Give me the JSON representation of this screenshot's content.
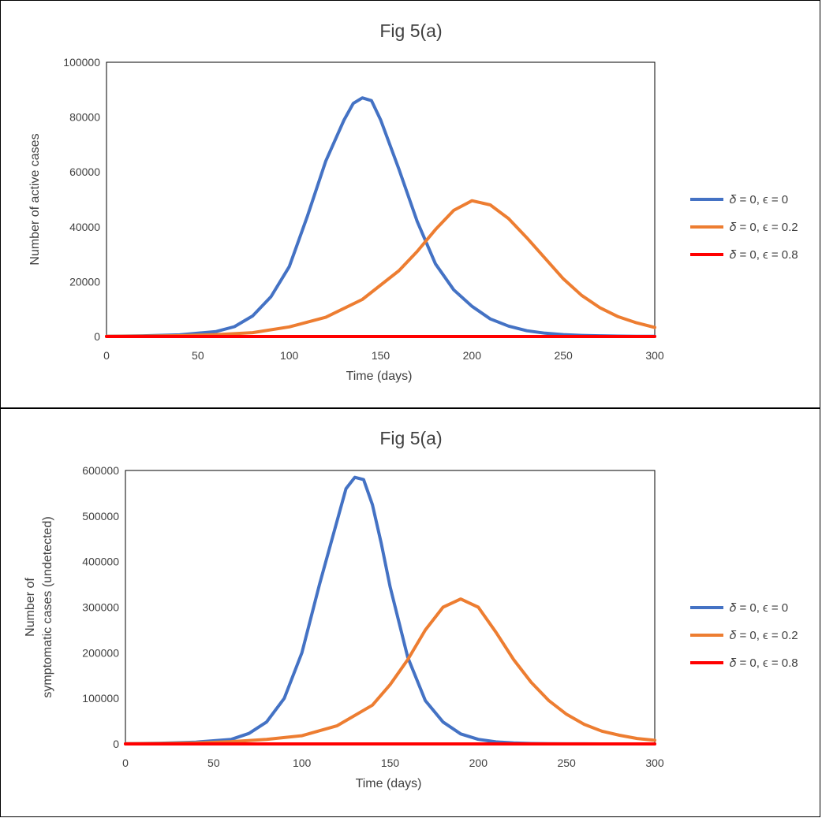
{
  "chart_data": [
    {
      "type": "line",
      "title": "Fig 5(a)",
      "xlabel": "Time (days)",
      "ylabel": "Number of active cases",
      "xlim": [
        0,
        300
      ],
      "ylim": [
        0,
        100000
      ],
      "xticks": [
        "0",
        "50",
        "100",
        "150",
        "200",
        "250",
        "300"
      ],
      "yticks": [
        "0",
        "20000",
        "40000",
        "60000",
        "80000",
        "100000"
      ],
      "legend_position": "right",
      "series": [
        {
          "name": "𝛿 = 0, ϵ = 0",
          "color": "#4472C4",
          "x": [
            0,
            20,
            40,
            60,
            70,
            80,
            90,
            100,
            110,
            120,
            130,
            135,
            140,
            145,
            150,
            160,
            170,
            180,
            190,
            200,
            210,
            220,
            230,
            240,
            250,
            260,
            270,
            280,
            290,
            300
          ],
          "y": [
            100,
            250,
            600,
            1800,
            3600,
            7500,
            14500,
            25500,
            44000,
            64000,
            79000,
            85000,
            87000,
            86000,
            79000,
            61000,
            42000,
            26500,
            17000,
            11000,
            6400,
            3800,
            2100,
            1200,
            700,
            400,
            250,
            150,
            80,
            50
          ]
        },
        {
          "name": "𝛿 = 0, ϵ = 0.2",
          "color": "#ED7D31",
          "x": [
            0,
            20,
            40,
            60,
            80,
            100,
            120,
            140,
            160,
            170,
            180,
            190,
            200,
            210,
            220,
            230,
            240,
            250,
            260,
            270,
            280,
            290,
            300
          ],
          "y": [
            50,
            150,
            300,
            700,
            1400,
            3500,
            7000,
            13500,
            24000,
            31000,
            39000,
            46000,
            49500,
            48000,
            43000,
            36000,
            28500,
            21000,
            15000,
            10500,
            7200,
            5000,
            3300
          ]
        },
        {
          "name": "𝛿 = 0, ϵ = 0.8",
          "color": "#FF0000",
          "x": [
            0,
            300
          ],
          "y": [
            0,
            0
          ]
        }
      ]
    },
    {
      "type": "line",
      "title": "Fig 5(a)",
      "xlabel": "Time (days)",
      "ylabel_lines": [
        "Number of",
        "symptomatic cases (undetected)"
      ],
      "xlim": [
        0,
        300
      ],
      "ylim": [
        0,
        600000
      ],
      "xticks": [
        "0",
        "50",
        "100",
        "150",
        "200",
        "250",
        "300"
      ],
      "yticks": [
        "0",
        "100000",
        "200000",
        "300000",
        "400000",
        "500000",
        "600000"
      ],
      "legend_position": "right",
      "series": [
        {
          "name": "𝛿 = 0, ϵ = 0",
          "color": "#4472C4",
          "x": [
            0,
            20,
            40,
            60,
            70,
            80,
            90,
            100,
            110,
            120,
            125,
            130,
            135,
            140,
            145,
            150,
            160,
            170,
            180,
            190,
            200,
            210,
            220,
            230,
            240,
            250,
            260,
            270,
            280,
            290,
            300
          ],
          "y": [
            500,
            1500,
            4000,
            10000,
            23000,
            48000,
            100000,
            200000,
            350000,
            490000,
            560000,
            585000,
            580000,
            525000,
            440000,
            345000,
            190000,
            95000,
            48000,
            22000,
            10000,
            4500,
            2000,
            900,
            400,
            200,
            100,
            50,
            20,
            10,
            5
          ]
        },
        {
          "name": "𝛿 = 0, ϵ = 0.2",
          "color": "#ED7D31",
          "x": [
            0,
            20,
            40,
            60,
            80,
            100,
            120,
            140,
            150,
            160,
            170,
            180,
            190,
            200,
            210,
            220,
            230,
            240,
            250,
            260,
            270,
            280,
            290,
            300
          ],
          "y": [
            300,
            800,
            2000,
            5000,
            10000,
            18000,
            40000,
            85000,
            130000,
            185000,
            250000,
            300000,
            318000,
            300000,
            245000,
            185000,
            135000,
            95000,
            65000,
            43000,
            28000,
            19000,
            12000,
            8000
          ]
        },
        {
          "name": "𝛿 = 0, ϵ = 0.8",
          "color": "#FF0000",
          "x": [
            0,
            300
          ],
          "y": [
            0,
            0
          ]
        }
      ]
    }
  ]
}
